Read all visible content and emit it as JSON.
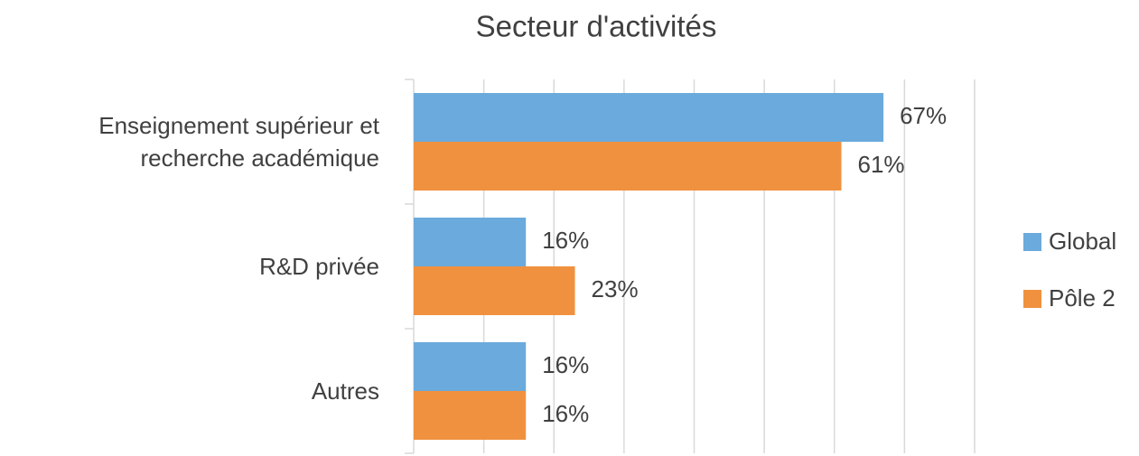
{
  "chart_data": {
    "type": "bar",
    "orientation": "horizontal",
    "title": "Secteur d'activités",
    "categories": [
      "Enseignement supérieur et recherche académique",
      "R&D privée",
      "Autres"
    ],
    "series": [
      {
        "name": "Global",
        "color": "#6aaadc",
        "values": [
          67,
          16,
          16
        ],
        "value_labels": [
          "67%",
          "16%",
          "16%"
        ]
      },
      {
        "name": "Pôle 2",
        "color": "#f0913f",
        "values": [
          61,
          23,
          16
        ],
        "value_labels": [
          "61%",
          "23%",
          "16%"
        ]
      }
    ],
    "xlim": [
      0,
      80
    ],
    "xticks": [
      0,
      10,
      20,
      30,
      40,
      50,
      60,
      70,
      80
    ],
    "grid": true,
    "legend": "right"
  }
}
